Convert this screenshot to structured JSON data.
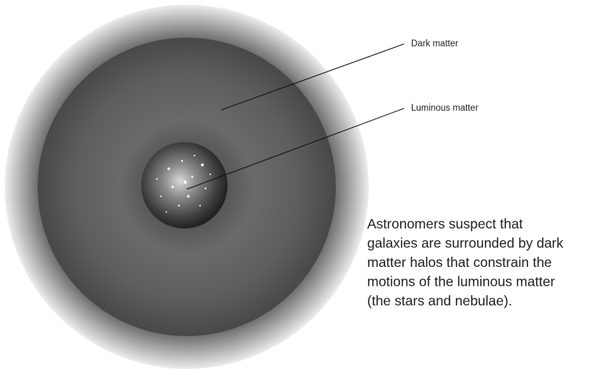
{
  "labels": {
    "dark_matter": "Dark matter",
    "luminous_matter": "Luminous matter"
  },
  "caption": {
    "lines": [
      "Astronomers suspect that",
      "galaxies are surrounded by dark",
      "matter halos that constrain the",
      "motions of the luminous matter",
      "(the stars and nebulae)."
    ]
  }
}
